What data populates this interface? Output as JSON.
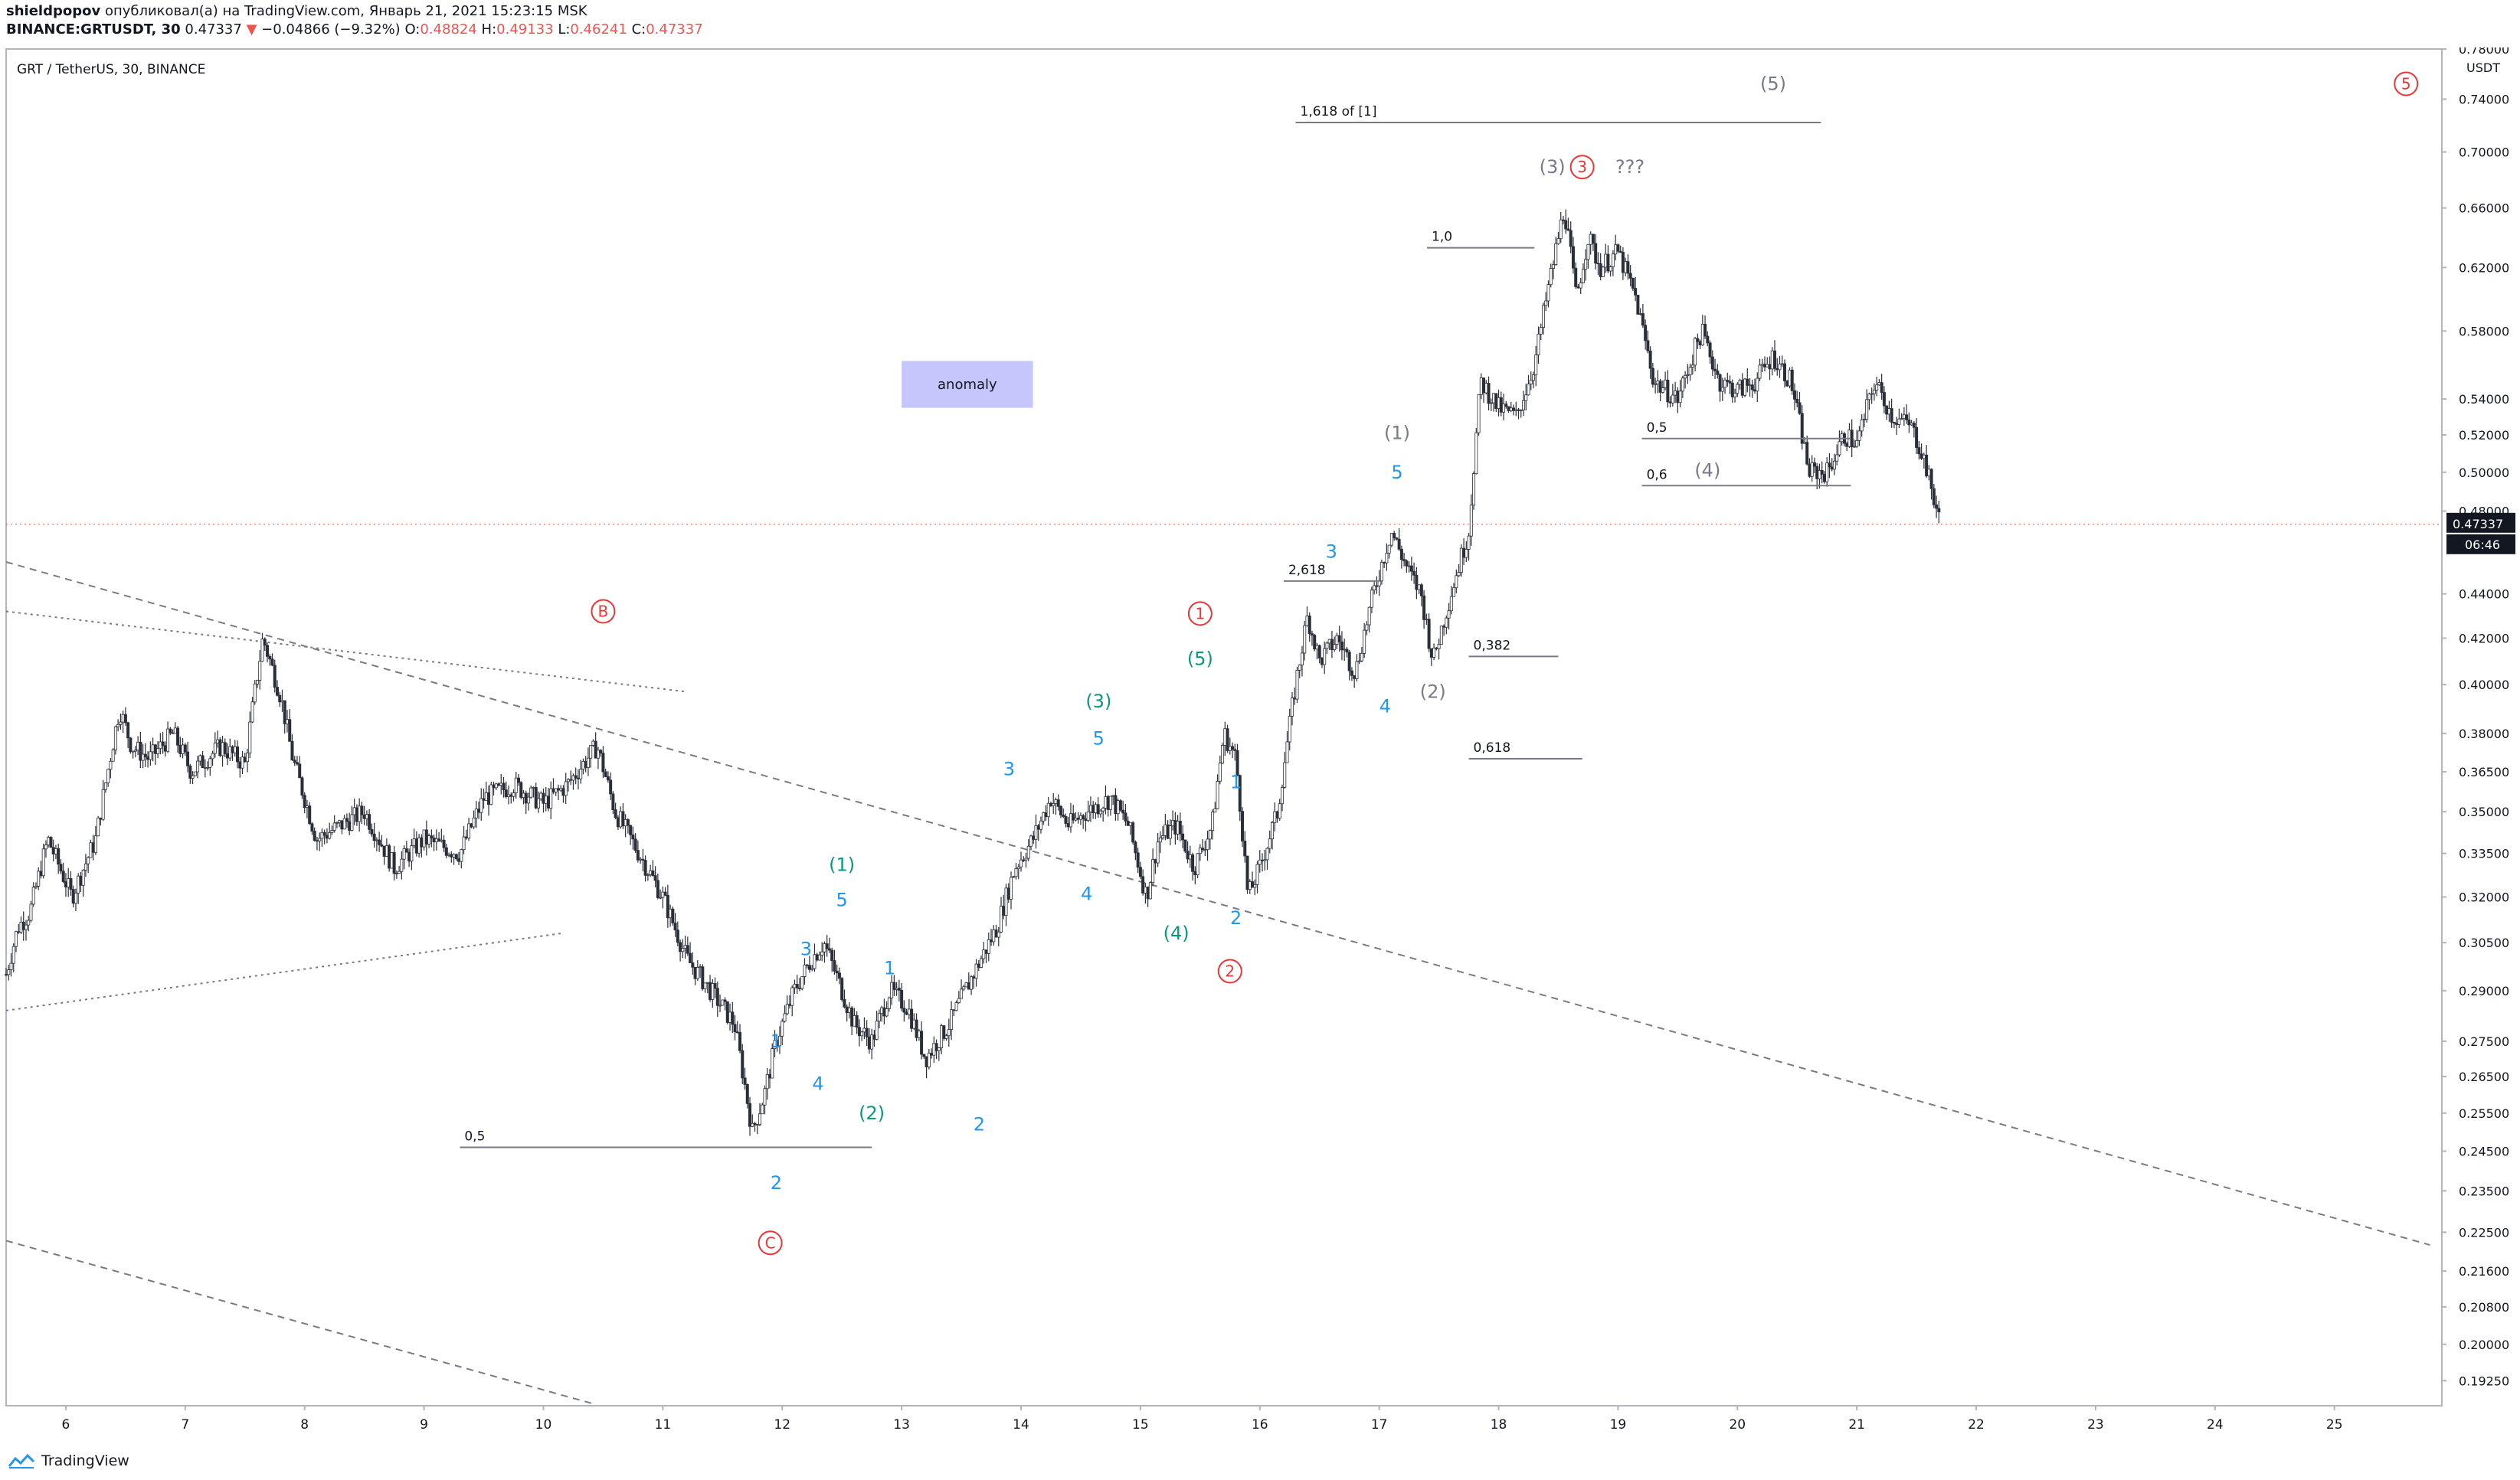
{
  "header": {
    "author": "shieldpopov",
    "published": "опубликовал(а) на TradingView.com, Январь 21, 2021 15:23:15 MSK",
    "symbol": "BINANCE:GRTUSDT, 30",
    "last": "0.47337",
    "change_arrow": "▼",
    "change": "−0.04866 (−9.32%)",
    "o_label": "O:",
    "o_value": "0.48824",
    "h_label": "H:",
    "h_value": "0.49133",
    "l_label": "L:",
    "l_value": "0.46241",
    "c_label": "C:",
    "c_value": "0.47337"
  },
  "footer": {
    "brand": "TradingView"
  },
  "colors": {
    "red": "#ef3434",
    "blue": "#2196f3",
    "teal": "#089981",
    "gray": "#787b86",
    "candle": "#2a2e39",
    "anomaly": "#c5c6fb"
  },
  "chart_data": {
    "type": "candlestick",
    "title": "GRT / TetherUS, 30, BINANCE",
    "currency": "USDT",
    "y_scale": "log",
    "ylim": [
      0.1875,
      0.78
    ],
    "y_ticks": [
      "0.78000",
      "0.74000",
      "0.70000",
      "0.66000",
      "0.62000",
      "0.58000",
      "0.54000",
      "0.52000",
      "0.50000",
      "0.48000",
      "0.44000",
      "0.42000",
      "0.40000",
      "0.38000",
      "0.36500",
      "0.35000",
      "0.33500",
      "0.32000",
      "0.30500",
      "0.29000",
      "0.27500",
      "0.26500",
      "0.25500",
      "0.24500",
      "0.23500",
      "0.22500",
      "0.21600",
      "0.20800",
      "0.20000",
      "0.19250"
    ],
    "x_ticks": [
      "6",
      "7",
      "8",
      "9",
      "10",
      "11",
      "12",
      "13",
      "14",
      "15",
      "16",
      "17",
      "18",
      "19",
      "20",
      "21",
      "22",
      "23",
      "24",
      "25"
    ],
    "x_range_days": [
      5.5,
      25.9
    ],
    "last_price_label": "0.47337",
    "countdown_label": "06:46",
    "price_path": [
      [
        5.5,
        0.295
      ],
      [
        5.6,
        0.31
      ],
      [
        5.7,
        0.315
      ],
      [
        5.85,
        0.34
      ],
      [
        6.05,
        0.32
      ],
      [
        6.25,
        0.34
      ],
      [
        6.45,
        0.39
      ],
      [
        6.55,
        0.375
      ],
      [
        6.7,
        0.37
      ],
      [
        6.9,
        0.38
      ],
      [
        7.05,
        0.365
      ],
      [
        7.3,
        0.375
      ],
      [
        7.5,
        0.368
      ],
      [
        7.65,
        0.42
      ],
      [
        7.8,
        0.395
      ],
      [
        7.9,
        0.37
      ],
      [
        8.1,
        0.34
      ],
      [
        8.3,
        0.345
      ],
      [
        8.5,
        0.35
      ],
      [
        8.75,
        0.33
      ],
      [
        9.0,
        0.34
      ],
      [
        9.3,
        0.335
      ],
      [
        9.5,
        0.355
      ],
      [
        9.75,
        0.36
      ],
      [
        10.0,
        0.353
      ],
      [
        10.2,
        0.36
      ],
      [
        10.45,
        0.375
      ],
      [
        10.6,
        0.35
      ],
      [
        10.8,
        0.335
      ],
      [
        11.0,
        0.32
      ],
      [
        11.2,
        0.3
      ],
      [
        11.4,
        0.29
      ],
      [
        11.6,
        0.28
      ],
      [
        11.75,
        0.25
      ],
      [
        11.85,
        0.26
      ],
      [
        11.95,
        0.275
      ],
      [
        12.1,
        0.29
      ],
      [
        12.25,
        0.3
      ],
      [
        12.35,
        0.305
      ],
      [
        12.5,
        0.29
      ],
      [
        12.6,
        0.28
      ],
      [
        12.75,
        0.275
      ],
      [
        12.9,
        0.29
      ],
      [
        13.05,
        0.285
      ],
      [
        13.2,
        0.27
      ],
      [
        13.4,
        0.28
      ],
      [
        13.6,
        0.295
      ],
      [
        13.8,
        0.31
      ],
      [
        13.95,
        0.33
      ],
      [
        14.1,
        0.34
      ],
      [
        14.25,
        0.355
      ],
      [
        14.4,
        0.345
      ],
      [
        14.55,
        0.35
      ],
      [
        14.75,
        0.355
      ],
      [
        14.9,
        0.345
      ],
      [
        15.05,
        0.32
      ],
      [
        15.15,
        0.34
      ],
      [
        15.3,
        0.345
      ],
      [
        15.45,
        0.33
      ],
      [
        15.6,
        0.345
      ],
      [
        15.7,
        0.38
      ],
      [
        15.8,
        0.37
      ],
      [
        15.9,
        0.32
      ],
      [
        16.0,
        0.33
      ],
      [
        16.15,
        0.35
      ],
      [
        16.3,
        0.4
      ],
      [
        16.4,
        0.43
      ],
      [
        16.5,
        0.41
      ],
      [
        16.65,
        0.42
      ],
      [
        16.8,
        0.405
      ],
      [
        16.95,
        0.44
      ],
      [
        17.1,
        0.47
      ],
      [
        17.25,
        0.45
      ],
      [
        17.35,
        0.44
      ],
      [
        17.45,
        0.41
      ],
      [
        17.6,
        0.44
      ],
      [
        17.75,
        0.47
      ],
      [
        17.85,
        0.55
      ],
      [
        18.0,
        0.535
      ],
      [
        18.15,
        0.53
      ],
      [
        18.3,
        0.56
      ],
      [
        18.45,
        0.62
      ],
      [
        18.55,
        0.66
      ],
      [
        18.65,
        0.6
      ],
      [
        18.75,
        0.64
      ],
      [
        18.85,
        0.62
      ],
      [
        19.0,
        0.63
      ],
      [
        19.15,
        0.6
      ],
      [
        19.3,
        0.55
      ],
      [
        19.5,
        0.54
      ],
      [
        19.7,
        0.58
      ],
      [
        19.85,
        0.55
      ],
      [
        20.0,
        0.545
      ],
      [
        20.15,
        0.55
      ],
      [
        20.3,
        0.565
      ],
      [
        20.45,
        0.55
      ],
      [
        20.6,
        0.5
      ],
      [
        20.75,
        0.5
      ],
      [
        20.9,
        0.52
      ],
      [
        21.0,
        0.515
      ],
      [
        21.15,
        0.55
      ],
      [
        21.3,
        0.53
      ],
      [
        21.45,
        0.525
      ],
      [
        21.55,
        0.51
      ],
      [
        21.65,
        0.485
      ],
      [
        21.7,
        0.47337
      ]
    ],
    "trendlines": [
      {
        "style": "dashed",
        "from": [
          5.5,
          0.455
        ],
        "to": [
          25.8,
          0.222
        ]
      },
      {
        "style": "dashed",
        "from": [
          5.5,
          0.223
        ],
        "to": [
          10.4,
          0.188
        ]
      },
      {
        "style": "dotted",
        "from": [
          5.5,
          0.432
        ],
        "to": [
          11.2,
          0.397
        ]
      },
      {
        "style": "dotted",
        "from": [
          5.5,
          0.284
        ],
        "to": [
          10.15,
          0.308
        ]
      }
    ],
    "fib_levels": [
      {
        "label": "1,618 of [1]",
        "price": 0.722,
        "x_start": 16.3,
        "x_end": 20.7
      },
      {
        "label": "1,0",
        "price": 0.633,
        "x_start": 17.4,
        "x_end": 18.3
      },
      {
        "label": "2,618",
        "price": 0.446,
        "x_start": 16.2,
        "x_end": 17.0
      },
      {
        "label": "0,382",
        "price": 0.412,
        "x_start": 17.75,
        "x_end": 18.5
      },
      {
        "label": "0,618",
        "price": 0.37,
        "x_start": 17.75,
        "x_end": 18.7
      },
      {
        "label": "0,5",
        "price": 0.518,
        "x_start": 19.2,
        "x_end": 20.95
      },
      {
        "label": "0,6",
        "price": 0.493,
        "x_start": 19.2,
        "x_end": 20.95
      },
      {
        "label": "0,5",
        "price": 0.246,
        "x_start": 9.3,
        "x_end": 12.75
      }
    ],
    "annotations": {
      "circled": [
        {
          "label": "B",
          "color": "red",
          "x": 10.5,
          "price": 0.432
        },
        {
          "label": "C",
          "color": "red",
          "x": 11.9,
          "price": 0.2225
        },
        {
          "label": "1",
          "color": "red",
          "x": 15.5,
          "price": 0.431
        },
        {
          "label": "2",
          "color": "red",
          "x": 15.75,
          "price": 0.296
        },
        {
          "label": "3",
          "color": "red",
          "x": 18.7,
          "price": 0.689
        },
        {
          "label": "5",
          "color": "red",
          "x": 25.6,
          "price": 0.752
        }
      ],
      "wave_labels": [
        {
          "text": "(5)",
          "color": "gray",
          "x": 20.3,
          "price": 0.752
        },
        {
          "text": "(3)",
          "color": "gray",
          "x": 18.45,
          "price": 0.689
        },
        {
          "text": "???",
          "color": "gray",
          "x": 19.1,
          "price": 0.689
        },
        {
          "text": "(1)",
          "color": "gray",
          "x": 17.15,
          "price": 0.521
        },
        {
          "text": "(2)",
          "color": "gray",
          "x": 17.45,
          "price": 0.397
        },
        {
          "text": "(4)",
          "color": "gray",
          "x": 19.75,
          "price": 0.501
        },
        {
          "text": "5",
          "color": "blue",
          "x": 17.15,
          "price": 0.5
        },
        {
          "text": "3",
          "color": "blue",
          "x": 16.6,
          "price": 0.46
        },
        {
          "text": "4",
          "color": "blue",
          "x": 17.05,
          "price": 0.391
        },
        {
          "text": "(5)",
          "color": "teal",
          "x": 15.5,
          "price": 0.411
        },
        {
          "text": "1",
          "color": "blue",
          "x": 15.8,
          "price": 0.361
        },
        {
          "text": "2",
          "color": "blue",
          "x": 15.8,
          "price": 0.313
        },
        {
          "text": "(4)",
          "color": "teal",
          "x": 15.3,
          "price": 0.308
        },
        {
          "text": "(3)",
          "color": "teal",
          "x": 14.65,
          "price": 0.393
        },
        {
          "text": "5",
          "color": "blue",
          "x": 14.65,
          "price": 0.378
        },
        {
          "text": "3",
          "color": "blue",
          "x": 13.9,
          "price": 0.366
        },
        {
          "text": "4",
          "color": "blue",
          "x": 14.55,
          "price": 0.321
        },
        {
          "text": "(1)",
          "color": "teal",
          "x": 12.5,
          "price": 0.331
        },
        {
          "text": "5",
          "color": "blue",
          "x": 12.5,
          "price": 0.319
        },
        {
          "text": "3",
          "color": "blue",
          "x": 12.2,
          "price": 0.303
        },
        {
          "text": "1",
          "color": "blue",
          "x": 12.9,
          "price": 0.297
        },
        {
          "text": "1",
          "color": "blue",
          "x": 11.95,
          "price": 0.275
        },
        {
          "text": "4",
          "color": "blue",
          "x": 12.3,
          "price": 0.263
        },
        {
          "text": "2",
          "color": "blue",
          "x": 13.65,
          "price": 0.252
        },
        {
          "text": "(2)",
          "color": "teal",
          "x": 12.75,
          "price": 0.255
        },
        {
          "text": "2",
          "color": "blue",
          "x": 11.95,
          "price": 0.237
        }
      ],
      "note": {
        "text": "anomaly",
        "x_start": 13.0,
        "x_end": 14.1,
        "price_hi": 0.562,
        "price_lo": 0.535
      }
    }
  }
}
